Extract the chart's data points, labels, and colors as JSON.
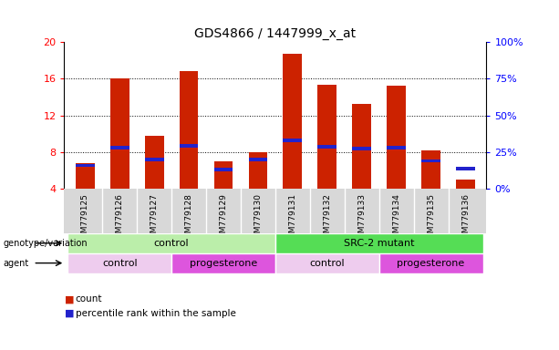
{
  "title": "GDS4866 / 1447999_x_at",
  "samples": [
    "GSM779125",
    "GSM779126",
    "GSM779127",
    "GSM779128",
    "GSM779129",
    "GSM779130",
    "GSM779131",
    "GSM779132",
    "GSM779133",
    "GSM779134",
    "GSM779135",
    "GSM779136"
  ],
  "count_values": [
    6.8,
    16.0,
    9.8,
    16.8,
    7.0,
    8.0,
    18.7,
    15.3,
    13.2,
    15.2,
    8.2,
    5.0
  ],
  "percentile_values": [
    6.35,
    8.3,
    7.0,
    8.45,
    5.9,
    7.0,
    9.1,
    8.35,
    8.15,
    8.3,
    6.85,
    6.0
  ],
  "y_min": 4,
  "y_max": 20,
  "y_ticks_left": [
    4,
    8,
    12,
    16,
    20
  ],
  "bar_color": "#CC2200",
  "percentile_color": "#2222CC",
  "bg_color": "#FFFFFF",
  "plot_bg_color": "#FFFFFF",
  "sample_area_color": "#D8D8D8",
  "genotype_groups": [
    {
      "label": "control",
      "start": 0,
      "end": 6,
      "color": "#BBEEAA"
    },
    {
      "label": "SRC-2 mutant",
      "start": 6,
      "end": 12,
      "color": "#55DD55"
    }
  ],
  "agent_groups": [
    {
      "label": "control",
      "start": 0,
      "end": 3,
      "color": "#EECCEE"
    },
    {
      "label": "progesterone",
      "start": 3,
      "end": 6,
      "color": "#DD55DD"
    },
    {
      "label": "control",
      "start": 6,
      "end": 9,
      "color": "#EECCEE"
    },
    {
      "label": "progesterone",
      "start": 9,
      "end": 12,
      "color": "#DD55DD"
    }
  ]
}
